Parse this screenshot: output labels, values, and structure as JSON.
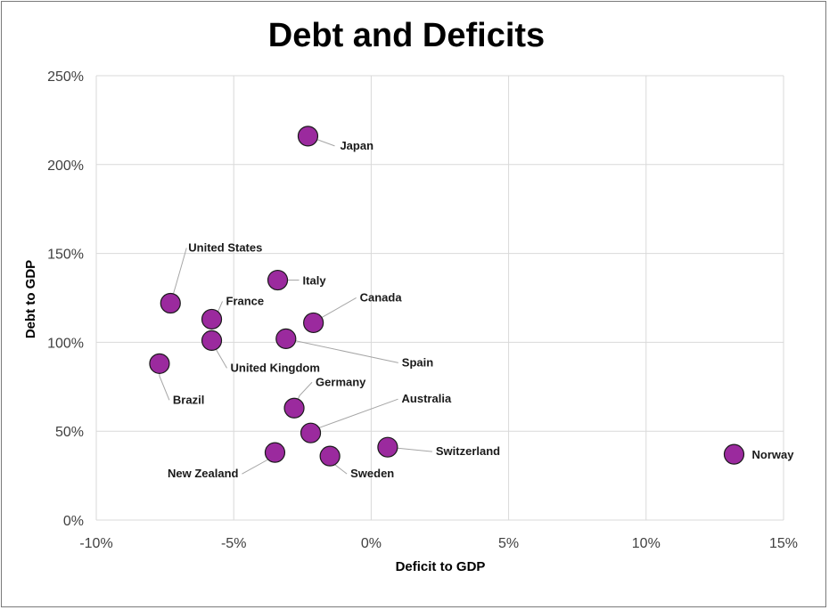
{
  "chart_data": {
    "type": "scatter",
    "title": "Debt and Deficits",
    "xlabel": "Deficit to GDP",
    "ylabel": "Debt to GDP",
    "xlim": [
      -10,
      15
    ],
    "ylim": [
      0,
      250
    ],
    "x_ticks": [
      -10,
      -5,
      0,
      5,
      10,
      15
    ],
    "y_ticks": [
      0,
      50,
      100,
      150,
      200,
      250
    ],
    "x_tick_labels": [
      "-10%",
      "-5%",
      "0%",
      "5%",
      "10%",
      "15%"
    ],
    "y_tick_labels": [
      "0%",
      "50%",
      "100%",
      "150%",
      "200%",
      "250%"
    ],
    "grid": true,
    "marker_color": "#9B2A9E",
    "points": [
      {
        "label": "Japan",
        "x": -2.3,
        "y": 216
      },
      {
        "label": "United States",
        "x": -7.3,
        "y": 122
      },
      {
        "label": "Italy",
        "x": -3.4,
        "y": 135
      },
      {
        "label": "Canada",
        "x": -2.1,
        "y": 111
      },
      {
        "label": "France",
        "x": -5.8,
        "y": 113
      },
      {
        "label": "United Kingdom",
        "x": -5.8,
        "y": 101
      },
      {
        "label": "Spain",
        "x": -3.1,
        "y": 102
      },
      {
        "label": "Brazil",
        "x": -7.7,
        "y": 88
      },
      {
        "label": "Germany",
        "x": -2.8,
        "y": 63
      },
      {
        "label": "Australia",
        "x": -2.2,
        "y": 49
      },
      {
        "label": "Switzerland",
        "x": 0.6,
        "y": 41
      },
      {
        "label": "New Zealand",
        "x": -3.5,
        "y": 38
      },
      {
        "label": "Sweden",
        "x": -1.5,
        "y": 36
      },
      {
        "label": "Norway",
        "x": 13.2,
        "y": 37
      }
    ]
  }
}
